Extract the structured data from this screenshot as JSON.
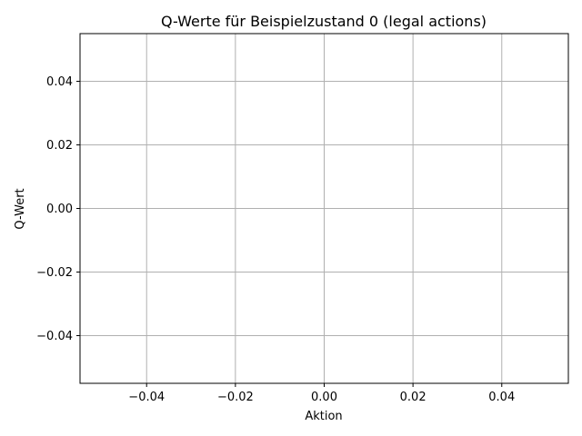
{
  "chart_data": {
    "type": "bar",
    "title": "Q-Werte für Beispielzustand 0 (legal actions)",
    "xlabel": "Aktion",
    "ylabel": "Q-Wert",
    "categories": [],
    "values": [],
    "xlim": [
      -0.055,
      0.055
    ],
    "ylim": [
      -0.055,
      0.055
    ],
    "x_ticks": [
      -0.04,
      -0.02,
      0.0,
      0.02,
      0.04
    ],
    "y_ticks": [
      -0.04,
      -0.02,
      0.0,
      0.02,
      0.04
    ],
    "x_tick_labels": [
      "−0.04",
      "−0.02",
      "0.00",
      "0.02",
      "0.04"
    ],
    "y_tick_labels": [
      "−0.04",
      "−0.02",
      "0.00",
      "0.02",
      "0.04"
    ],
    "grid": true,
    "colors": {
      "grid": "#b0b0b0",
      "axes": "#000000",
      "background": "#ffffff"
    }
  }
}
